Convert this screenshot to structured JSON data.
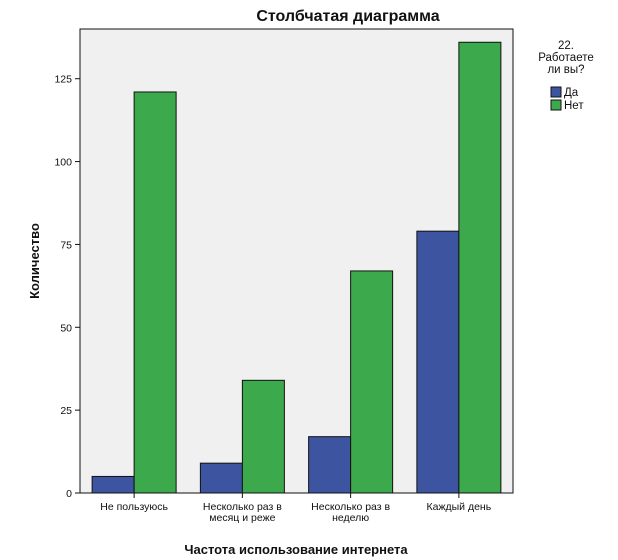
{
  "chart_data": {
    "type": "bar",
    "title": "Столбчатая диаграмма",
    "xlabel": "Частота использование интернета",
    "ylabel": "Количество",
    "ylim": [
      0,
      140
    ],
    "yticks": [
      0,
      25,
      50,
      75,
      100,
      125
    ],
    "categories": [
      [
        "Не пользуюсь"
      ],
      [
        "Несколько раз в",
        "месяц и реже"
      ],
      [
        "Несколько раз в",
        "неделю"
      ],
      [
        "Каждый день"
      ]
    ],
    "series": [
      {
        "name": "Да",
        "color": "#3d55a0",
        "values": [
          5,
          9,
          17,
          79
        ]
      },
      {
        "name": "Нет",
        "color": "#3caa4c",
        "values": [
          121,
          34,
          67,
          136
        ]
      }
    ],
    "legend": {
      "title": [
        "22.",
        "Работаете",
        "ли вы?"
      ],
      "placement": "right"
    },
    "grid": false,
    "plot_background": "#f0f0f0"
  }
}
